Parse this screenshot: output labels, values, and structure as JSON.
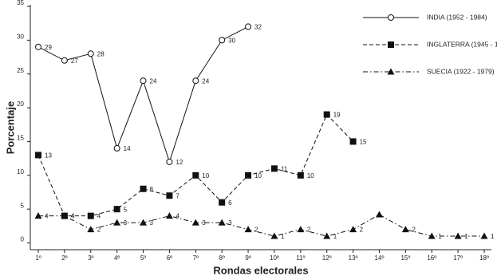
{
  "chart_data": {
    "type": "line",
    "x_label": "Rondas electorales",
    "y_label": "Porcentaje",
    "categories": [
      "1º",
      "2º",
      "3º",
      "4º",
      "5º",
      "6º",
      "7º",
      "8º",
      "9º",
      "10º",
      "11º",
      "12º",
      "13º",
      "14º",
      "15º",
      "16º",
      "17º",
      "18º"
    ],
    "ylim": [
      -1,
      35
    ],
    "yticks": [
      0,
      5,
      10,
      15,
      20,
      25,
      30,
      35
    ],
    "grid": false,
    "legend": "top-right",
    "series": [
      {
        "name": "INDIA (1952 - 1984)",
        "color": "#111111",
        "line_style": "solid",
        "marker": "circle",
        "values": [
          29,
          27,
          28,
          14,
          24,
          12,
          24,
          30,
          32,
          null,
          null,
          null,
          null,
          null,
          null,
          null,
          null,
          null
        ]
      },
      {
        "name": "INGLATERRA (1945 - 1979)",
        "color": "#111111",
        "line_style": "dashed",
        "marker": "square",
        "values": [
          13,
          4,
          4,
          5,
          8,
          7,
          10,
          6,
          10,
          11,
          10,
          19,
          15,
          null,
          null,
          null,
          null,
          null
        ]
      },
      {
        "name": "SUECIA (1922 - 1979)",
        "color": "#111111",
        "line_style": "dashdot",
        "marker": "triangle",
        "values": [
          4,
          4,
          2,
          3,
          3,
          4,
          3,
          3,
          2,
          1,
          2,
          1,
          2,
          4.2,
          2,
          1,
          1,
          1
        ],
        "value_labels": [
          "4",
          "4",
          "2",
          "3",
          "3",
          "4",
          "3",
          "3",
          "2",
          "1",
          "2",
          "1",
          "2",
          null,
          "2",
          "1",
          "1",
          "1"
        ]
      }
    ]
  }
}
